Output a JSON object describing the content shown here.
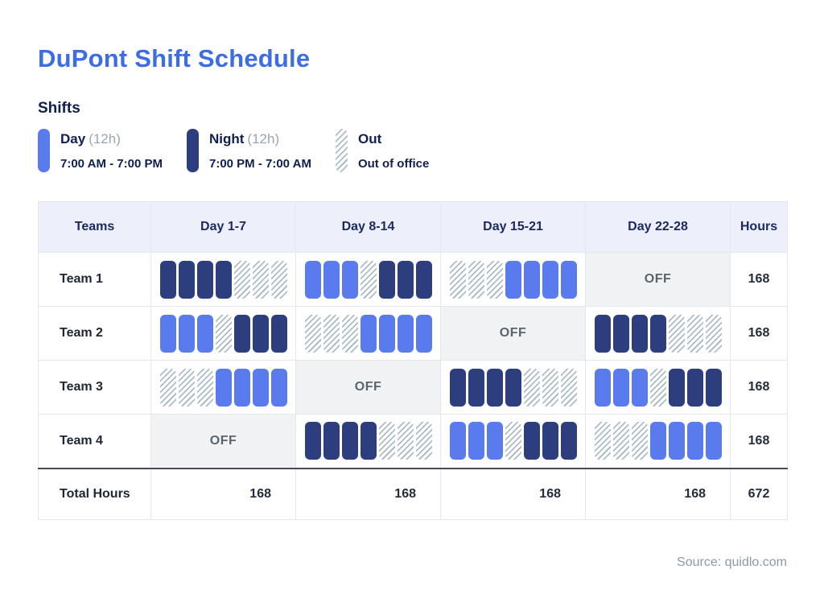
{
  "title": "DuPont Shift Schedule",
  "legend": {
    "heading": "Shifts",
    "items": [
      {
        "label": "Day",
        "duration": "(12h)",
        "time": "7:00 AM - 7:00 PM"
      },
      {
        "label": "Night",
        "duration": "(12h)",
        "time": "7:00 PM - 7:00 AM"
      },
      {
        "label": "Out",
        "duration": "",
        "time": "Out of office"
      }
    ]
  },
  "colors": {
    "accent_blue": "#3D6CE7",
    "day_shift": "#597BEE",
    "night_shift": "#2D3E7E",
    "out_hatch": "#ADBDC5",
    "header_bg": "#EDEFFA",
    "off_bg": "#F1F2F3",
    "navy_text": "#10204E"
  },
  "chart_data": {
    "type": "table",
    "title": "DuPont Shift Schedule",
    "columns": [
      "Teams",
      "Day 1-7",
      "Day 8-14",
      "Day 15-21",
      "Day 22-28",
      "Hours"
    ],
    "off_label": "OFF",
    "pattern_key": {
      "D": "Day shift (12h, 7:00 AM - 7:00 PM)",
      "N": "Night shift (12h, 7:00 PM - 7:00 AM)",
      "O": "Out of office",
      "OFF": "Week off"
    },
    "rows": [
      {
        "team": "Team 1",
        "weeks": [
          "NNNNOOO",
          "DDDONNN",
          "OOODDDD",
          "OFF"
        ],
        "hours": "168"
      },
      {
        "team": "Team 2",
        "weeks": [
          "DDDONNN",
          "OOODDDD",
          "OFF",
          "NNNNOOO"
        ],
        "hours": "168"
      },
      {
        "team": "Team 3",
        "weeks": [
          "OOODDDD",
          "OFF",
          "NNNNOOO",
          "DDDONNN"
        ],
        "hours": "168"
      },
      {
        "team": "Team 4",
        "weeks": [
          "OFF",
          "NNNNOOO",
          "DDDONNN",
          "OOODDDD"
        ],
        "hours": "168"
      }
    ],
    "totals": {
      "label": "Total Hours",
      "values": [
        "168",
        "168",
        "168",
        "168"
      ],
      "grand": "672"
    }
  },
  "footer": {
    "source": "Source: quidlo.com"
  }
}
